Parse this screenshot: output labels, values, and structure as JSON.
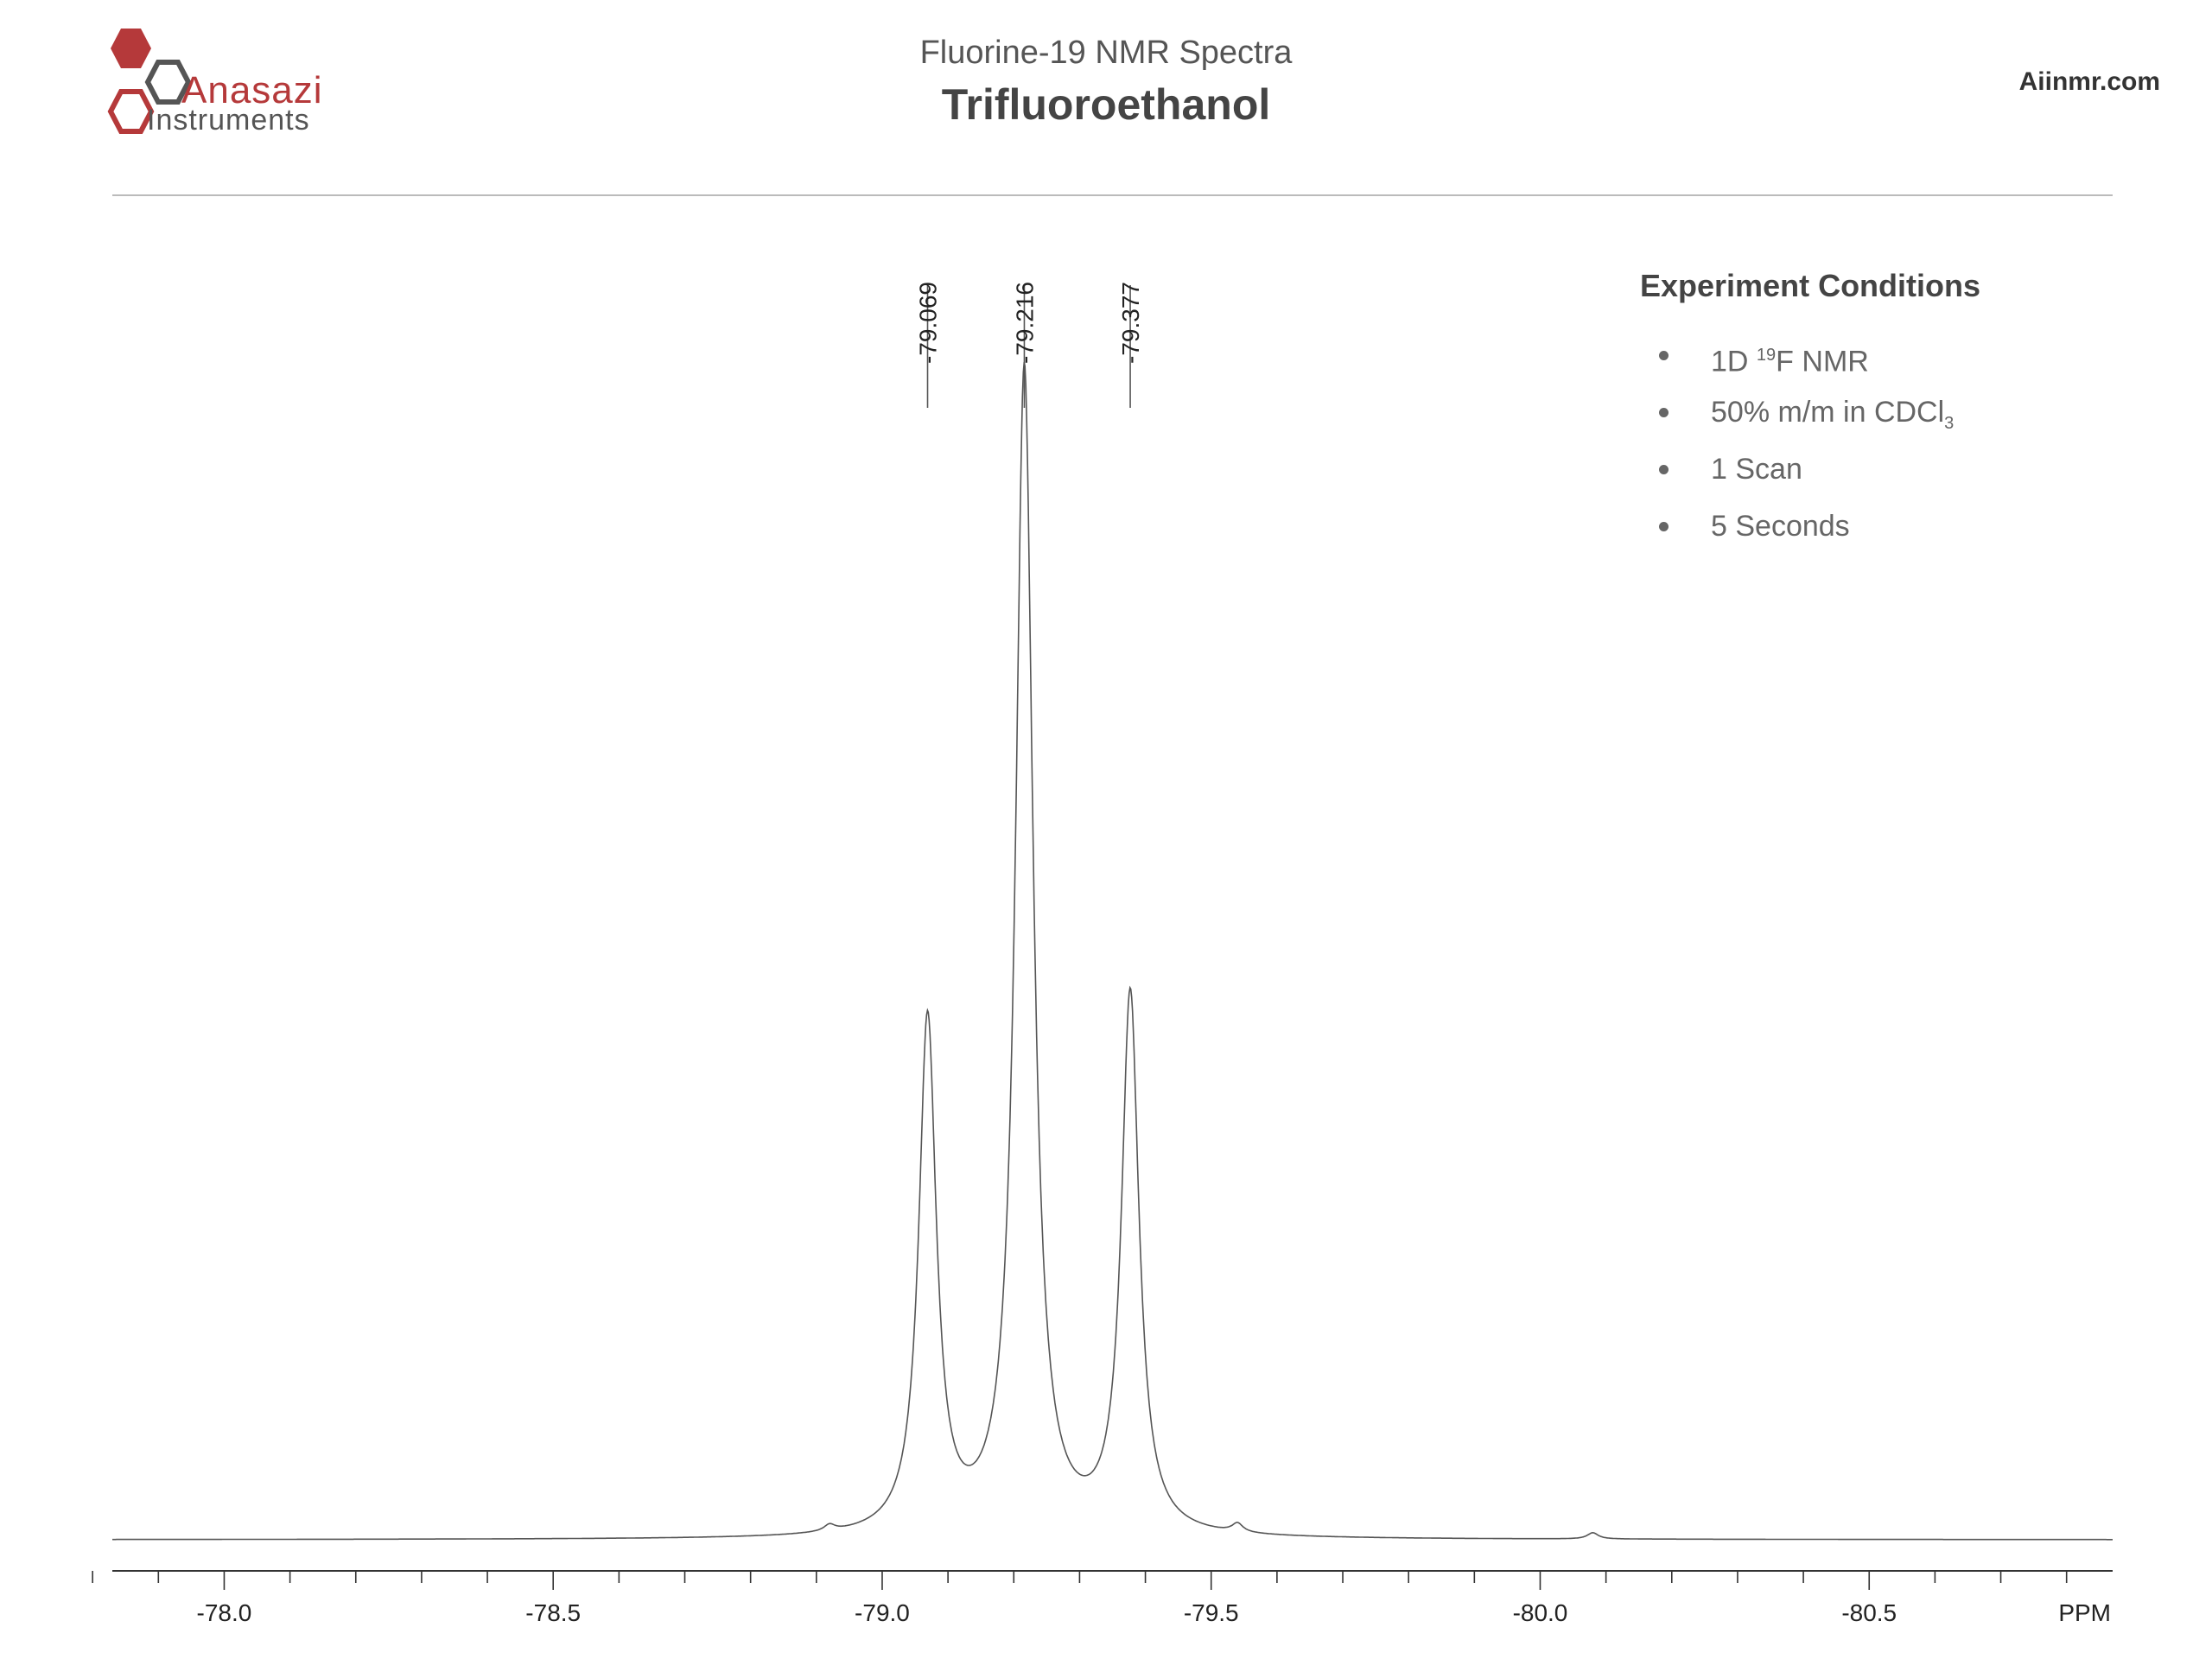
{
  "header": {
    "subtitle": "Fluorine-19 NMR Spectra",
    "title": "Trifluoroethanol",
    "website": "Aiinmr.com"
  },
  "brand": {
    "name": "Anasazi",
    "sub": "Instruments",
    "colors": {
      "red": "#b5393a",
      "gray": "#555555"
    }
  },
  "conditions": {
    "title": "Experiment Conditions",
    "items": [
      {
        "pre": "1D ",
        "sup": "19",
        "post": "F NMR"
      },
      {
        "pre": "50% m/m in CDCl",
        "sub": "3",
        "post": ""
      },
      {
        "pre": "1 Scan"
      },
      {
        "pre": "5 Seconds"
      }
    ]
  },
  "chart_data": {
    "type": "line",
    "title": "Trifluoroethanol",
    "xlabel": "PPM",
    "xlim": [
      -77.83,
      -80.87
    ],
    "x_reversed": true,
    "ylim": [
      0,
      1.0
    ],
    "grid": false,
    "legend": "none",
    "x_ticks": [
      -78.0,
      -78.5,
      -79.0,
      -79.5,
      -80.0,
      -80.5
    ],
    "x_tick_labels": [
      "-78.0",
      "-78.5",
      "-79.0",
      "-79.5",
      "-80.0",
      "-80.5"
    ],
    "peak_labels": [
      "-79.069",
      "-79.216",
      "-79.377"
    ],
    "series": [
      {
        "peaks": [
          {
            "ppm": -79.069,
            "height": 0.41
          },
          {
            "ppm": -79.216,
            "height": 0.93
          },
          {
            "ppm": -79.377,
            "height": 0.43
          }
        ],
        "minor_peaks": [
          {
            "ppm": -78.92,
            "height": 0.005
          },
          {
            "ppm": -79.54,
            "height": 0.007
          },
          {
            "ppm": -80.08,
            "height": 0.005
          }
        ]
      }
    ],
    "line_color": "#555555"
  }
}
